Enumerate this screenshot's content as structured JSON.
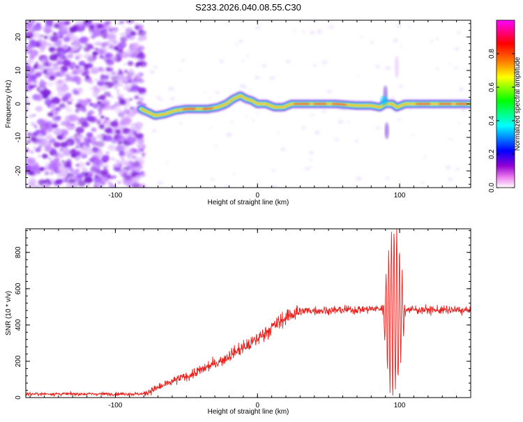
{
  "title": "S233.2026.040.08.55.C30",
  "chart_data": [
    {
      "type": "heatmap",
      "xlabel": "Height of straight line (km)",
      "ylabel": "Frequency (Hz)",
      "xlim": [
        -163,
        150
      ],
      "ylim": [
        -25,
        25
      ],
      "xticks": [
        -100,
        0,
        100
      ],
      "yticks": [
        -20,
        -10,
        0,
        10,
        20
      ],
      "colorbar": {
        "label": "Normalized spectral amplitude",
        "range": [
          0,
          1
        ],
        "ticks": [
          0.0,
          0.2,
          0.4,
          0.6,
          0.8
        ],
        "stops": [
          "#ffffff",
          "#ee82ee",
          "#9400d3",
          "#0000ff",
          "#00ffff",
          "#00ff00",
          "#ffff00",
          "#ff8000",
          "#ff0000",
          "#ff00ff"
        ]
      },
      "noise_region": [
        -163,
        -82
      ],
      "ridge": [
        [
          -82,
          -1.5
        ],
        [
          -77,
          -2.5
        ],
        [
          -72,
          -3.5
        ],
        [
          -65,
          -3
        ],
        [
          -58,
          -2
        ],
        [
          -50,
          -1.5
        ],
        [
          -42,
          -1.5
        ],
        [
          -35,
          -1.5
        ],
        [
          -28,
          -1
        ],
        [
          -22,
          0
        ],
        [
          -17,
          1.5
        ],
        [
          -12,
          2.5
        ],
        [
          -8,
          1.5
        ],
        [
          -4,
          1
        ],
        [
          0,
          0
        ],
        [
          6,
          0
        ],
        [
          12,
          -1
        ],
        [
          18,
          -1
        ],
        [
          24,
          0
        ],
        [
          40,
          0
        ],
        [
          55,
          0
        ],
        [
          70,
          -0.5
        ],
        [
          80,
          -0.5
        ],
        [
          86,
          -1
        ],
        [
          90,
          0
        ],
        [
          95,
          0
        ],
        [
          98,
          -1
        ],
        [
          104,
          0
        ],
        [
          115,
          0
        ],
        [
          130,
          0
        ],
        [
          150,
          0
        ]
      ],
      "scatter_features": [
        {
          "x": 98,
          "y": 11
        },
        {
          "x": 90,
          "y": 3
        },
        {
          "x": 91,
          "y": -8
        }
      ]
    },
    {
      "type": "line",
      "xlabel": "Height of straight line (km)",
      "ylabel": "SNR (10 * v/v)",
      "xlim": [
        -163,
        150
      ],
      "ylim": [
        0,
        930
      ],
      "xticks": [
        -100,
        0,
        100
      ],
      "yticks": [
        0,
        200,
        400,
        600,
        800
      ],
      "color": "#e8211d",
      "series_trend": [
        [
          -163,
          20
        ],
        [
          -80,
          20
        ],
        [
          -73,
          45
        ],
        [
          -65,
          70
        ],
        [
          -55,
          105
        ],
        [
          -45,
          130
        ],
        [
          -35,
          170
        ],
        [
          -25,
          205
        ],
        [
          -15,
          255
        ],
        [
          -5,
          295
        ],
        [
          5,
          355
        ],
        [
          15,
          415
        ],
        [
          25,
          465
        ],
        [
          35,
          480
        ],
        [
          50,
          480
        ],
        [
          70,
          485
        ],
        [
          85,
          490
        ],
        [
          105,
          485
        ],
        [
          150,
          480
        ]
      ],
      "burst": {
        "x": [
          88,
          104
        ],
        "peak": 930,
        "trough": 10
      }
    }
  ]
}
